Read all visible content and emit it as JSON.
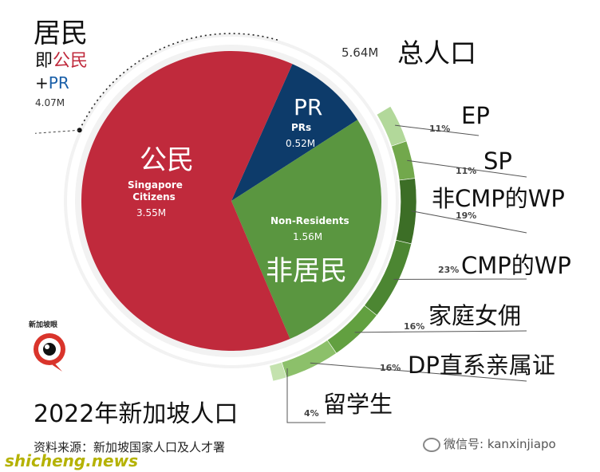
{
  "chart_data": {
    "type": "pie",
    "title": "2022年新加坡人口",
    "source": "资料来源：新加坡国家人口及人才署",
    "total": {
      "value": "5.64M",
      "label": "总人口"
    },
    "residents_annotation": {
      "line1": "居民",
      "line2_prefix": "即",
      "line2_citizen": "公民",
      "line3_plus": "+",
      "line3_pr": "PR",
      "value": "4.07M"
    },
    "slices": [
      {
        "key": "citizens",
        "label_en": "Singapore Citizens",
        "label_en_line1": "Singapore",
        "label_en_line2": "Citizens",
        "label_cn": "公民",
        "value": 3.55,
        "value_text": "3.55M",
        "color": "#c02a3c"
      },
      {
        "key": "prs",
        "label_en": "PRs",
        "label_cn": "PR",
        "value": 0.52,
        "value_text": "0.52M",
        "color": "#0d3b6a"
      },
      {
        "key": "non_residents",
        "label_en": "Non-Residents",
        "label_cn": "非居民",
        "value": 1.56,
        "value_text": "1.56M",
        "color": "#5a9640"
      }
    ],
    "non_resident_breakdown": [
      {
        "label": "EP",
        "percent": 11,
        "percent_text": "11%",
        "color": "#b2d89a"
      },
      {
        "label": "SP",
        "percent": 11,
        "percent_text": "11%",
        "color": "#72a84c"
      },
      {
        "label": "非CMP的WP",
        "percent": 19,
        "percent_text": "19%",
        "color": "#3c6e26"
      },
      {
        "label": "CMP的WP",
        "percent": 23,
        "percent_text": "23%",
        "color": "#4c8632"
      },
      {
        "label": "家庭女佣",
        "percent": 16,
        "percent_text": "16%",
        "color": "#62a040"
      },
      {
        "label": "DP直系亲属证",
        "percent": 16,
        "percent_text": "16%",
        "color": "#8cc06a"
      },
      {
        "label": "留学生",
        "percent": 4,
        "percent_text": "4%",
        "color": "#c4e2ae"
      }
    ]
  },
  "logo_text": "新加坡眼",
  "watermark_left": "shicheng.news",
  "watermark_right": "微信号: kanxinjiapo",
  "colors": {
    "citizen_text": "#c02a3c",
    "pr_text": "#1a5fa8",
    "ring_bg": "#f2f2f2"
  }
}
